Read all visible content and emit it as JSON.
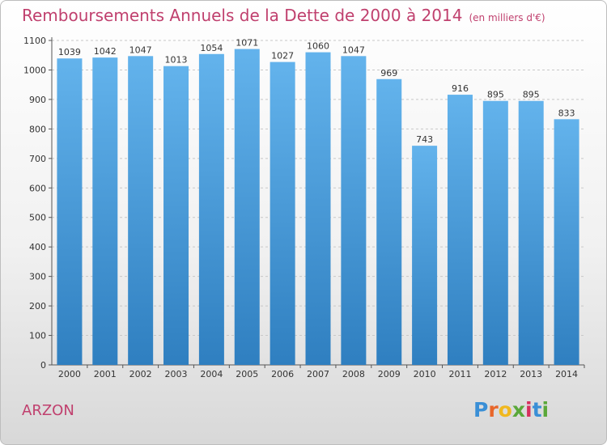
{
  "title": "Remboursements Annuels de la Dette de 2000 à 2014",
  "subtitle": "(en milliers d'€)",
  "city": "ARZON",
  "logo": [
    "P",
    "r",
    "o",
    "x",
    "i",
    "t",
    "i"
  ],
  "colors": {
    "title": "#c0406e",
    "bar_top": "#63b3ec",
    "bar_bottom": "#2f7fc0",
    "grid": "#c8c8c8"
  },
  "chart_data": {
    "type": "bar",
    "categories": [
      "2000",
      "2001",
      "2002",
      "2003",
      "2004",
      "2005",
      "2006",
      "2007",
      "2008",
      "2009",
      "2010",
      "2011",
      "2012",
      "2013",
      "2014"
    ],
    "values": [
      1039,
      1042,
      1047,
      1013,
      1054,
      1071,
      1027,
      1060,
      1047,
      969,
      743,
      916,
      895,
      895,
      833
    ],
    "ylim": [
      0,
      1100
    ],
    "yticks": [
      0,
      100,
      200,
      300,
      400,
      500,
      600,
      700,
      800,
      900,
      1000,
      1100
    ],
    "grid": true
  }
}
